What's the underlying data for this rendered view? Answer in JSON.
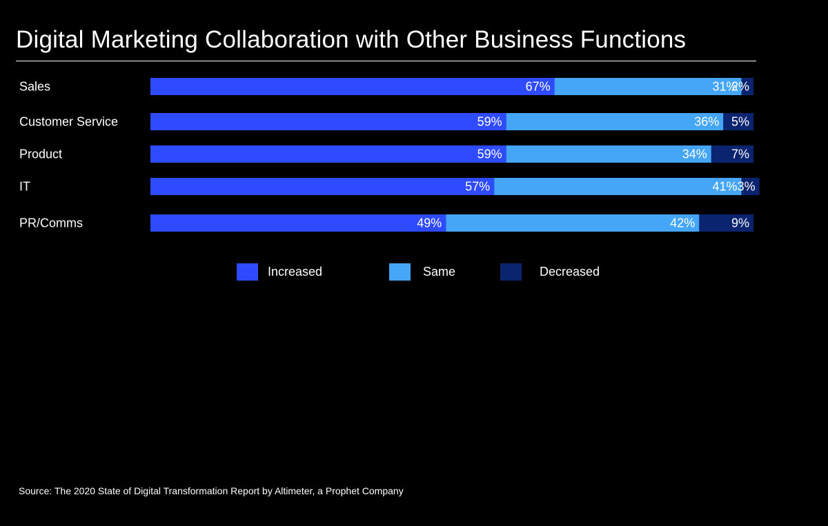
{
  "title": "Digital Marketing Collaboration with Other Business Functions",
  "source": "Source: The 2020 State of Digital Transformation Report by Altimeter, a Prophet Company",
  "colors": {
    "background": "#000000",
    "increased": "#2F4BFF",
    "same": "#45A6F7",
    "decreased": "#0A2470",
    "text": "#FFFFFF"
  },
  "legend": {
    "increased": "Increased",
    "same": "Same",
    "decreased": "Decreased"
  },
  "chart_data": {
    "type": "bar",
    "orientation": "horizontal",
    "stacked": true,
    "title": "Digital Marketing Collaboration with Other Business Functions",
    "categories": [
      "Sales",
      "Customer Service",
      "Product",
      "IT",
      "PR/Comms"
    ],
    "series": [
      {
        "name": "Increased",
        "values": [
          67,
          59,
          59,
          57,
          49
        ],
        "labels": [
          "67%",
          "59%",
          "59%",
          "57%",
          "49%"
        ]
      },
      {
        "name": "Same",
        "values": [
          31,
          36,
          34,
          41,
          42
        ],
        "labels": [
          "31%",
          "36%",
          "34%",
          "41%",
          "42%"
        ]
      },
      {
        "name": "Decreased",
        "values": [
          2,
          5,
          7,
          3,
          9
        ],
        "labels": [
          "2%",
          "5%",
          "7%",
          "3%",
          "9%"
        ]
      }
    ],
    "xlim": [
      0,
      100
    ],
    "grid": false,
    "legend_position": "bottom"
  }
}
